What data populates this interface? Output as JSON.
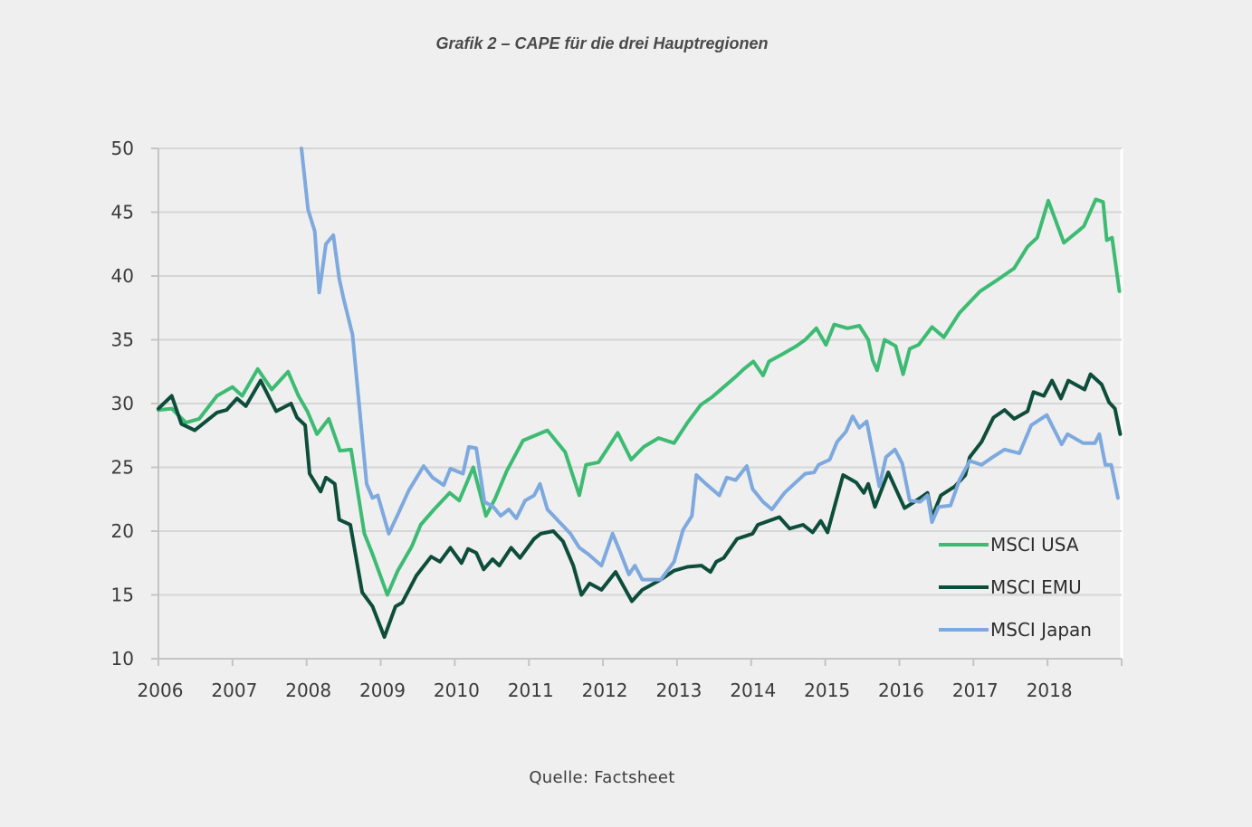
{
  "page": {
    "title": "Grafik 2 – CAPE für die drei Hauptregionen",
    "source": "Quelle: Factsheet"
  },
  "chart_data": {
    "type": "line",
    "title": "Grafik 2 – CAPE für die drei Hauptregionen",
    "xlabel": "",
    "ylabel": "",
    "xlim": [
      2006,
      2019
    ],
    "ylim": [
      10,
      50
    ],
    "x_ticks": [
      2006,
      2007,
      2008,
      2009,
      2010,
      2011,
      2012,
      2013,
      2014,
      2015,
      2016,
      2017,
      2018
    ],
    "x_tick_labels": [
      "2006",
      "2007",
      "2008",
      "2009",
      "2010",
      "2011",
      "2012",
      "2013",
      "2014",
      "2015",
      "2016",
      "2017",
      "2018"
    ],
    "y_ticks": [
      10,
      15,
      20,
      25,
      30,
      35,
      40,
      45,
      50
    ],
    "y_tick_labels": [
      "10",
      "15",
      "20",
      "25",
      "30",
      "35",
      "40",
      "45",
      "50"
    ],
    "grid": "horizontal",
    "legend_position": "bottom-right",
    "series": [
      {
        "name": "MSCI USA",
        "color": "#3dbb73",
        "points": [
          [
            2006.0,
            29.5
          ],
          [
            2006.18,
            29.6
          ],
          [
            2006.37,
            28.5
          ],
          [
            2006.55,
            28.8
          ],
          [
            2006.79,
            30.6
          ],
          [
            2007.0,
            31.3
          ],
          [
            2007.13,
            30.6
          ],
          [
            2007.34,
            32.7
          ],
          [
            2007.53,
            31.1
          ],
          [
            2007.75,
            32.5
          ],
          [
            2007.89,
            30.6
          ],
          [
            2008.01,
            29.4
          ],
          [
            2008.14,
            27.6
          ],
          [
            2008.3,
            28.8
          ],
          [
            2008.45,
            26.3
          ],
          [
            2008.6,
            26.4
          ],
          [
            2008.78,
            19.8
          ],
          [
            2008.89,
            18.2
          ],
          [
            2009.09,
            15.0
          ],
          [
            2009.23,
            16.9
          ],
          [
            2009.42,
            18.8
          ],
          [
            2009.54,
            20.5
          ],
          [
            2009.72,
            21.7
          ],
          [
            2009.93,
            23.0
          ],
          [
            2010.06,
            22.4
          ],
          [
            2010.25,
            25.0
          ],
          [
            2010.42,
            21.2
          ],
          [
            2010.54,
            22.5
          ],
          [
            2010.7,
            24.7
          ],
          [
            2010.92,
            27.1
          ],
          [
            2011.25,
            27.9
          ],
          [
            2011.49,
            26.2
          ],
          [
            2011.68,
            22.8
          ],
          [
            2011.77,
            25.2
          ],
          [
            2011.94,
            25.4
          ],
          [
            2012.2,
            27.7
          ],
          [
            2012.38,
            25.6
          ],
          [
            2012.55,
            26.6
          ],
          [
            2012.75,
            27.3
          ],
          [
            2012.96,
            26.9
          ],
          [
            2013.14,
            28.5
          ],
          [
            2013.32,
            29.9
          ],
          [
            2013.47,
            30.5
          ],
          [
            2013.63,
            31.3
          ],
          [
            2013.79,
            32.1
          ],
          [
            2013.9,
            32.7
          ],
          [
            2014.03,
            33.3
          ],
          [
            2014.16,
            32.2
          ],
          [
            2014.24,
            33.3
          ],
          [
            2014.43,
            33.9
          ],
          [
            2014.61,
            34.5
          ],
          [
            2014.73,
            35.0
          ],
          [
            2014.88,
            35.9
          ],
          [
            2015.01,
            34.6
          ],
          [
            2015.12,
            36.2
          ],
          [
            2015.3,
            35.9
          ],
          [
            2015.46,
            36.1
          ],
          [
            2015.58,
            35.0
          ],
          [
            2015.64,
            33.4
          ],
          [
            2015.7,
            32.6
          ],
          [
            2015.8,
            35.0
          ],
          [
            2015.95,
            34.5
          ],
          [
            2016.05,
            32.3
          ],
          [
            2016.14,
            34.3
          ],
          [
            2016.26,
            34.6
          ],
          [
            2016.44,
            36.0
          ],
          [
            2016.6,
            35.2
          ],
          [
            2016.81,
            37.1
          ],
          [
            2017.09,
            38.8
          ],
          [
            2017.3,
            39.6
          ],
          [
            2017.55,
            40.6
          ],
          [
            2017.73,
            42.3
          ],
          [
            2017.86,
            43.0
          ],
          [
            2018.01,
            45.9
          ],
          [
            2018.22,
            42.6
          ],
          [
            2018.41,
            43.5
          ],
          [
            2018.49,
            43.9
          ],
          [
            2018.65,
            46.0
          ],
          [
            2018.75,
            45.8
          ],
          [
            2018.8,
            42.8
          ],
          [
            2018.87,
            43.0
          ],
          [
            2018.97,
            38.8
          ]
        ]
      },
      {
        "name": "MSCI EMU",
        "color": "#0d4d3a",
        "points": [
          [
            2006.0,
            29.6
          ],
          [
            2006.18,
            30.6
          ],
          [
            2006.31,
            28.4
          ],
          [
            2006.49,
            27.9
          ],
          [
            2006.79,
            29.3
          ],
          [
            2006.92,
            29.5
          ],
          [
            2007.06,
            30.4
          ],
          [
            2007.18,
            29.8
          ],
          [
            2007.38,
            31.8
          ],
          [
            2007.59,
            29.4
          ],
          [
            2007.79,
            30.0
          ],
          [
            2007.87,
            28.9
          ],
          [
            2007.98,
            28.3
          ],
          [
            2008.04,
            24.5
          ],
          [
            2008.19,
            23.1
          ],
          [
            2008.26,
            24.2
          ],
          [
            2008.38,
            23.7
          ],
          [
            2008.44,
            20.9
          ],
          [
            2008.59,
            20.5
          ],
          [
            2008.75,
            15.2
          ],
          [
            2008.89,
            14.1
          ],
          [
            2009.05,
            11.7
          ],
          [
            2009.2,
            14.1
          ],
          [
            2009.29,
            14.4
          ],
          [
            2009.48,
            16.5
          ],
          [
            2009.68,
            18.0
          ],
          [
            2009.8,
            17.6
          ],
          [
            2009.94,
            18.7
          ],
          [
            2010.09,
            17.5
          ],
          [
            2010.18,
            18.6
          ],
          [
            2010.29,
            18.3
          ],
          [
            2010.39,
            17.0
          ],
          [
            2010.51,
            17.8
          ],
          [
            2010.6,
            17.3
          ],
          [
            2010.76,
            18.7
          ],
          [
            2010.88,
            17.9
          ],
          [
            2011.07,
            19.4
          ],
          [
            2011.16,
            19.8
          ],
          [
            2011.33,
            20.0
          ],
          [
            2011.46,
            19.2
          ],
          [
            2011.6,
            17.3
          ],
          [
            2011.71,
            15.0
          ],
          [
            2011.82,
            15.9
          ],
          [
            2011.98,
            15.4
          ],
          [
            2012.17,
            16.8
          ],
          [
            2012.39,
            14.5
          ],
          [
            2012.53,
            15.4
          ],
          [
            2012.78,
            16.2
          ],
          [
            2012.96,
            16.9
          ],
          [
            2013.14,
            17.2
          ],
          [
            2013.33,
            17.3
          ],
          [
            2013.45,
            16.8
          ],
          [
            2013.53,
            17.6
          ],
          [
            2013.63,
            17.9
          ],
          [
            2013.81,
            19.4
          ],
          [
            2014.02,
            19.8
          ],
          [
            2014.09,
            20.5
          ],
          [
            2014.38,
            21.1
          ],
          [
            2014.52,
            20.2
          ],
          [
            2014.7,
            20.5
          ],
          [
            2014.83,
            19.9
          ],
          [
            2014.94,
            20.8
          ],
          [
            2015.03,
            19.9
          ],
          [
            2015.24,
            24.4
          ],
          [
            2015.42,
            23.8
          ],
          [
            2015.52,
            23.0
          ],
          [
            2015.58,
            23.7
          ],
          [
            2015.67,
            21.9
          ],
          [
            2015.85,
            24.6
          ],
          [
            2016.07,
            21.8
          ],
          [
            2016.23,
            22.4
          ],
          [
            2016.38,
            23.0
          ],
          [
            2016.44,
            21.1
          ],
          [
            2016.56,
            22.8
          ],
          [
            2016.75,
            23.5
          ],
          [
            2016.89,
            24.4
          ],
          [
            2016.95,
            25.8
          ],
          [
            2017.11,
            27.0
          ],
          [
            2017.27,
            28.9
          ],
          [
            2017.42,
            29.5
          ],
          [
            2017.55,
            28.8
          ],
          [
            2017.73,
            29.4
          ],
          [
            2017.81,
            30.9
          ],
          [
            2017.95,
            30.6
          ],
          [
            2018.06,
            31.8
          ],
          [
            2018.18,
            30.4
          ],
          [
            2018.28,
            31.8
          ],
          [
            2018.5,
            31.1
          ],
          [
            2018.58,
            32.3
          ],
          [
            2018.73,
            31.5
          ],
          [
            2018.83,
            30.1
          ],
          [
            2018.91,
            29.6
          ],
          [
            2018.98,
            27.6
          ]
        ]
      },
      {
        "name": "MSCI Japan",
        "color": "#7ea9de",
        "points": [
          [
            2007.93,
            50.0
          ],
          [
            2008.02,
            45.2
          ],
          [
            2008.11,
            43.5
          ],
          [
            2008.17,
            38.7
          ],
          [
            2008.26,
            42.5
          ],
          [
            2008.36,
            43.2
          ],
          [
            2008.44,
            39.8
          ],
          [
            2008.5,
            38.2
          ],
          [
            2008.62,
            35.4
          ],
          [
            2008.81,
            23.7
          ],
          [
            2008.89,
            22.6
          ],
          [
            2008.96,
            22.8
          ],
          [
            2009.11,
            19.8
          ],
          [
            2009.23,
            21.3
          ],
          [
            2009.38,
            23.2
          ],
          [
            2009.58,
            25.1
          ],
          [
            2009.7,
            24.2
          ],
          [
            2009.85,
            23.6
          ],
          [
            2009.94,
            24.9
          ],
          [
            2010.11,
            24.5
          ],
          [
            2010.19,
            26.6
          ],
          [
            2010.29,
            26.5
          ],
          [
            2010.4,
            22.3
          ],
          [
            2010.52,
            21.9
          ],
          [
            2010.62,
            21.2
          ],
          [
            2010.73,
            21.7
          ],
          [
            2010.83,
            21.0
          ],
          [
            2010.95,
            22.4
          ],
          [
            2011.07,
            22.8
          ],
          [
            2011.15,
            23.7
          ],
          [
            2011.25,
            21.7
          ],
          [
            2011.43,
            20.6
          ],
          [
            2011.56,
            19.8
          ],
          [
            2011.68,
            18.7
          ],
          [
            2011.8,
            18.2
          ],
          [
            2011.98,
            17.3
          ],
          [
            2012.13,
            19.8
          ],
          [
            2012.23,
            18.4
          ],
          [
            2012.35,
            16.6
          ],
          [
            2012.43,
            17.3
          ],
          [
            2012.53,
            16.2
          ],
          [
            2012.78,
            16.2
          ],
          [
            2012.96,
            17.6
          ],
          [
            2013.08,
            20.1
          ],
          [
            2013.2,
            21.2
          ],
          [
            2013.26,
            24.4
          ],
          [
            2013.39,
            23.7
          ],
          [
            2013.57,
            22.8
          ],
          [
            2013.67,
            24.2
          ],
          [
            2013.79,
            24.0
          ],
          [
            2013.94,
            25.1
          ],
          [
            2014.02,
            23.3
          ],
          [
            2014.16,
            22.3
          ],
          [
            2014.28,
            21.7
          ],
          [
            2014.45,
            23.0
          ],
          [
            2014.58,
            23.7
          ],
          [
            2014.73,
            24.5
          ],
          [
            2014.85,
            24.6
          ],
          [
            2014.91,
            25.2
          ],
          [
            2015.06,
            25.6
          ],
          [
            2015.16,
            27.0
          ],
          [
            2015.28,
            27.8
          ],
          [
            2015.37,
            29.0
          ],
          [
            2015.46,
            28.1
          ],
          [
            2015.56,
            28.6
          ],
          [
            2015.73,
            23.5
          ],
          [
            2015.82,
            25.8
          ],
          [
            2015.94,
            26.4
          ],
          [
            2016.04,
            25.3
          ],
          [
            2016.14,
            22.4
          ],
          [
            2016.28,
            22.3
          ],
          [
            2016.38,
            22.8
          ],
          [
            2016.44,
            20.7
          ],
          [
            2016.53,
            21.9
          ],
          [
            2016.69,
            22.0
          ],
          [
            2016.81,
            24.0
          ],
          [
            2016.95,
            25.5
          ],
          [
            2017.11,
            25.2
          ],
          [
            2017.26,
            25.8
          ],
          [
            2017.42,
            26.4
          ],
          [
            2017.62,
            26.1
          ],
          [
            2017.78,
            28.3
          ],
          [
            2017.99,
            29.1
          ],
          [
            2018.19,
            26.8
          ],
          [
            2018.27,
            27.6
          ],
          [
            2018.48,
            26.9
          ],
          [
            2018.64,
            26.9
          ],
          [
            2018.7,
            27.6
          ],
          [
            2018.78,
            25.2
          ],
          [
            2018.86,
            25.2
          ],
          [
            2018.95,
            22.6
          ]
        ]
      }
    ]
  }
}
